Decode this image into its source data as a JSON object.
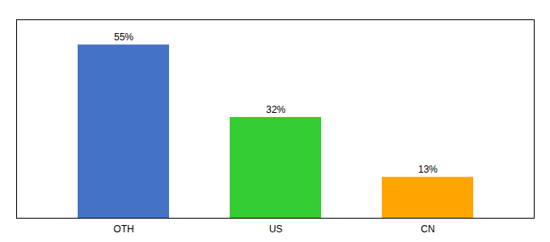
{
  "chart_data": {
    "type": "bar",
    "categories": [
      "OTH",
      "US",
      "CN"
    ],
    "values": [
      55,
      32,
      13
    ],
    "value_labels": [
      "55%",
      "32%",
      "13%"
    ],
    "data_labels": true,
    "colors": [
      "#4472C4",
      "#33CC33",
      "#FFA500"
    ],
    "ylim": [
      0,
      63
    ],
    "tick_labels": "x",
    "grid": false
  }
}
